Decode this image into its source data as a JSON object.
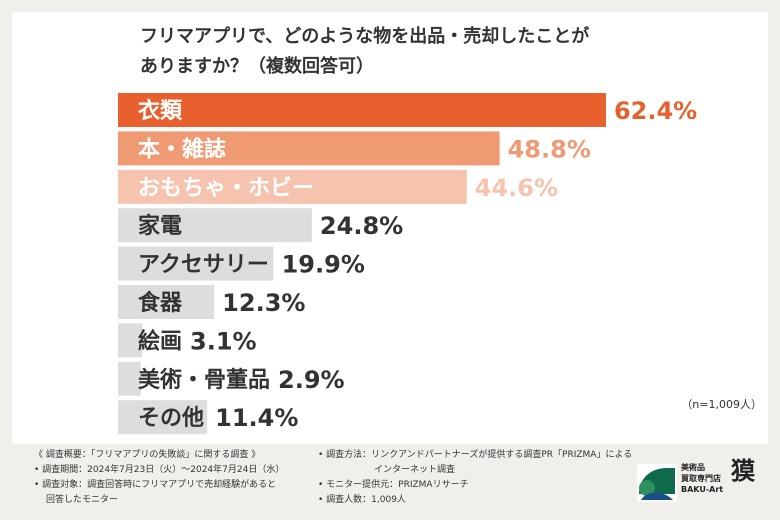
{
  "title": {
    "line1": "フリマアプリで、どのような物を出品・売却したことが",
    "line2": "ありますか？（複数回答可）"
  },
  "chart_data": {
    "type": "bar",
    "orientation": "horizontal",
    "title": "フリマアプリで、どのような物を出品・売却したことがありますか？（複数回答可）",
    "categories": [
      "衣類",
      "本・雑誌",
      "おもちゃ・ホビー",
      "家電",
      "アクセサリー",
      "食器",
      "絵画",
      "美術・骨董品",
      "その他"
    ],
    "values": [
      62.4,
      48.8,
      44.6,
      24.8,
      19.9,
      12.3,
      3.1,
      2.9,
      11.4
    ],
    "value_labels": [
      "62.4%",
      "48.8%",
      "44.6%",
      "24.8%",
      "19.9%",
      "12.3%",
      "3.1%",
      "2.9%",
      "11.4%"
    ],
    "unit": "%",
    "xlim": [
      0,
      100
    ],
    "grid": false,
    "legend": "none",
    "bar_colors": [
      "#e8602e",
      "#f09a74",
      "#f6c4ae",
      "#dddddd",
      "#dddddd",
      "#dddddd",
      "#dddddd",
      "#dddddd",
      "#dddddd"
    ],
    "label_colors": [
      "#ffffff",
      "#ffffff",
      "#ffffff",
      "#333333",
      "#333333",
      "#333333",
      "#333333",
      "#333333",
      "#333333"
    ],
    "value_colors": [
      "#e8602e",
      "#f09a74",
      "#f6c4ae",
      "#333333",
      "#333333",
      "#333333",
      "#333333",
      "#333333",
      "#333333"
    ]
  },
  "note": "（n=1,009人）",
  "footer": {
    "left": [
      "《 調査概要：「フリマアプリの失敗談」に関する調査 》",
      "• 調査期間：2024年7月23日（火）～2024年7月24日（水）",
      "• 調査対象：調査回答時にフリマアプリで売却経験があると",
      "回答したモニター"
    ],
    "right": [
      "• 調査方法：リンクアンドパートナーズが提供する調査PR「PRIZMA」による",
      "インターネット調査",
      "• モニター提供元：PRIZMAリサーチ",
      "• 調査人数：1,009人"
    ],
    "logo": {
      "line1": "美術品",
      "line2": "買取専門店",
      "line3": "BAKU-Art",
      "kanji": "獏"
    }
  }
}
